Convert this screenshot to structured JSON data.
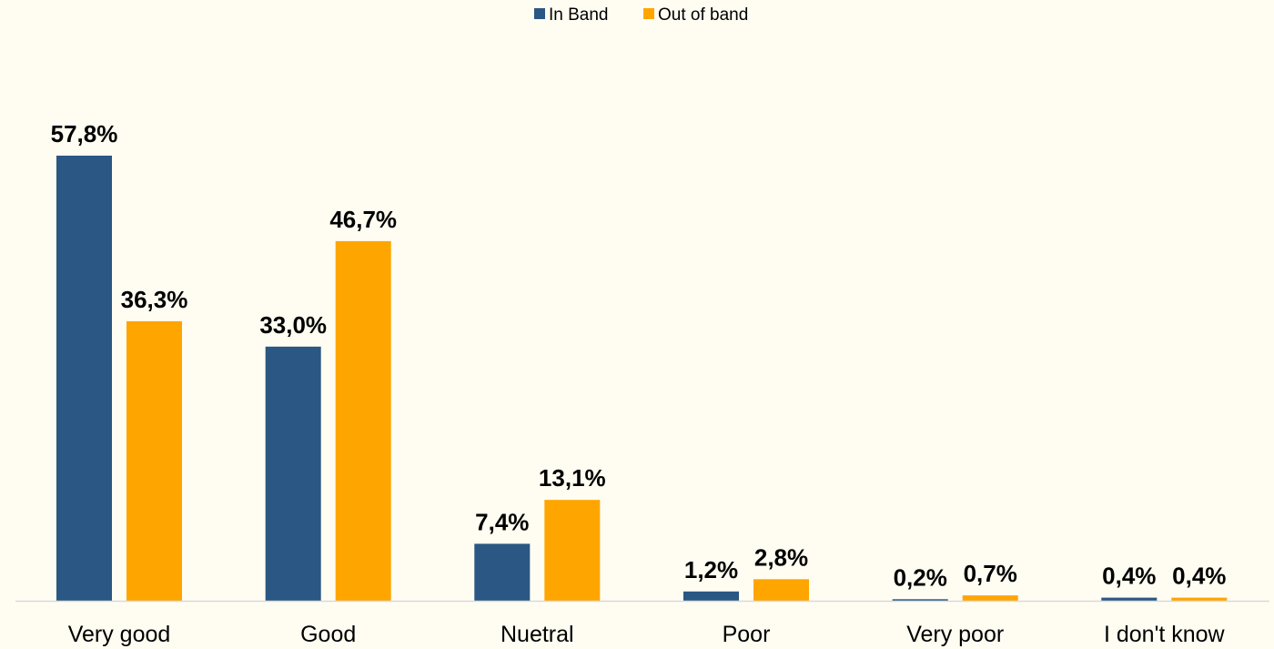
{
  "chart_data": {
    "type": "bar",
    "categories": [
      "Very good",
      "Good",
      "Nuetral",
      "Poor",
      "Very poor",
      "I don't know"
    ],
    "series": [
      {
        "name": "In Band",
        "color": "#2a5783",
        "values": [
          57.8,
          33.0,
          7.4,
          1.2,
          0.2,
          0.4
        ],
        "labels": [
          "57,8%",
          "33,0%",
          "7,4%",
          "1,2%",
          "0,2%",
          "0,4%"
        ]
      },
      {
        "name": "Out of band",
        "color": "#ffa500",
        "values": [
          36.3,
          46.7,
          13.1,
          2.8,
          0.7,
          0.4
        ],
        "labels": [
          "36,3%",
          "46,7%",
          "13,1%",
          "2,8%",
          "0,7%",
          "0,4%"
        ]
      }
    ],
    "title": "",
    "xlabel": "",
    "ylabel": "",
    "ylim": [
      0,
      60
    ],
    "grid": false,
    "legend_position": "top-center",
    "axis_color": "#d9d9d9",
    "background": "#fffdf2"
  }
}
